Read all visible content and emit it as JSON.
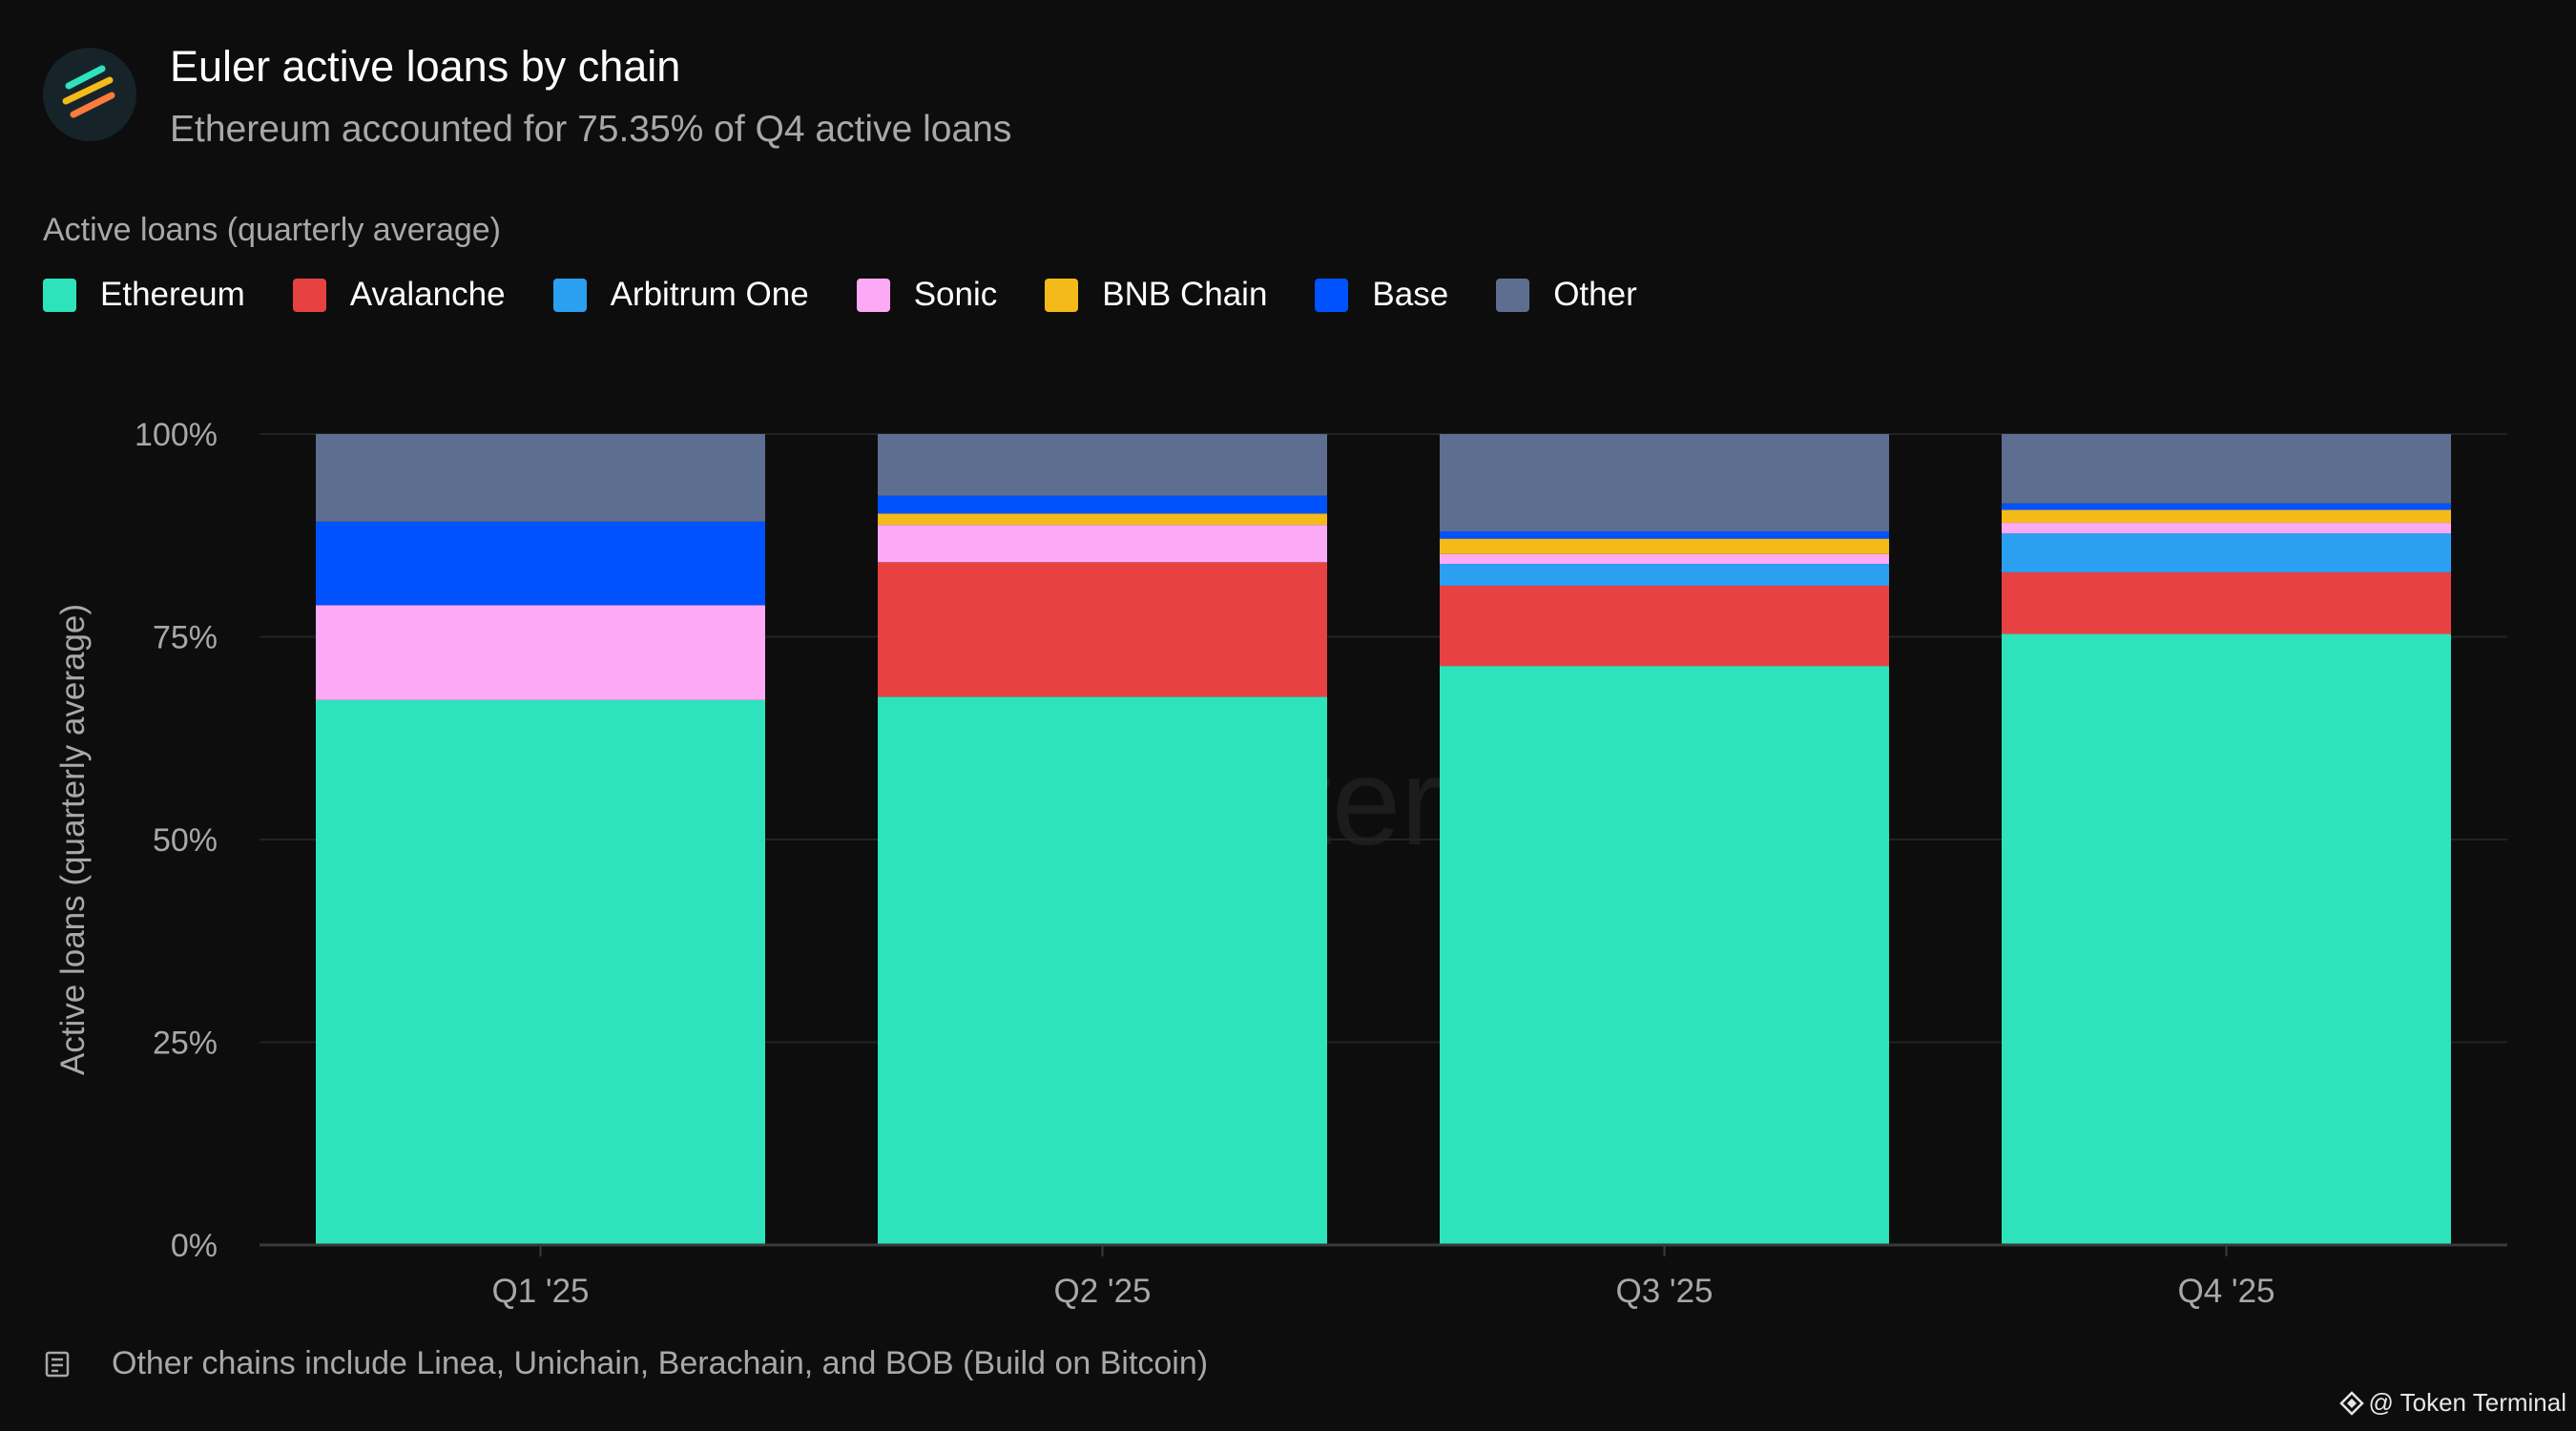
{
  "header": {
    "title": "Euler active loans by chain",
    "subtitle": "Ethereum accounted for 75.35% of Q4 active loans",
    "logo": "euler-logo"
  },
  "legend": {
    "title": "Active loans (quarterly average)"
  },
  "watermark": "token terminal_",
  "footnote": {
    "icon": "note-icon",
    "text": "Other chains include Linea, Unichain, Berachain, and BOB (Build on Bitcoin)"
  },
  "credit": {
    "icon": "token-terminal-icon",
    "text": "@ Token Terminal"
  },
  "chart_data": {
    "type": "bar",
    "stacked": true,
    "normalized": true,
    "ylabel": "Active loans (quarterly average)",
    "ylim": [
      0,
      100
    ],
    "yticks": [
      "0%",
      "25%",
      "50%",
      "75%",
      "100%"
    ],
    "ytick_values": [
      0,
      25,
      50,
      75,
      100
    ],
    "grid": true,
    "legend_position": "top-left",
    "categories": [
      "Q1 '25",
      "Q2 '25",
      "Q3 '25",
      "Q4 '25"
    ],
    "series": [
      {
        "name": "Ethereum",
        "color": "#2ee3bb",
        "values": [
          67.2,
          67.6,
          71.4,
          75.35
        ]
      },
      {
        "name": "Avalanche",
        "color": "#e84142",
        "values": [
          0.0,
          16.6,
          9.9,
          7.6
        ]
      },
      {
        "name": "Arbitrum One",
        "color": "#2ba0f0",
        "values": [
          0.0,
          0.0,
          2.7,
          4.8
        ]
      },
      {
        "name": "Sonic",
        "color": "#fdaaf6",
        "values": [
          11.7,
          4.6,
          1.2,
          1.3
        ]
      },
      {
        "name": "BNB Chain",
        "color": "#f3ba1a",
        "values": [
          0.0,
          1.4,
          1.9,
          1.6
        ]
      },
      {
        "name": "Base",
        "color": "#0052ff",
        "values": [
          10.3,
          2.2,
          0.9,
          0.8
        ]
      },
      {
        "name": "Other",
        "color": "#5e6e90",
        "values": [
          10.8,
          7.6,
          12.0,
          8.55
        ]
      }
    ]
  }
}
